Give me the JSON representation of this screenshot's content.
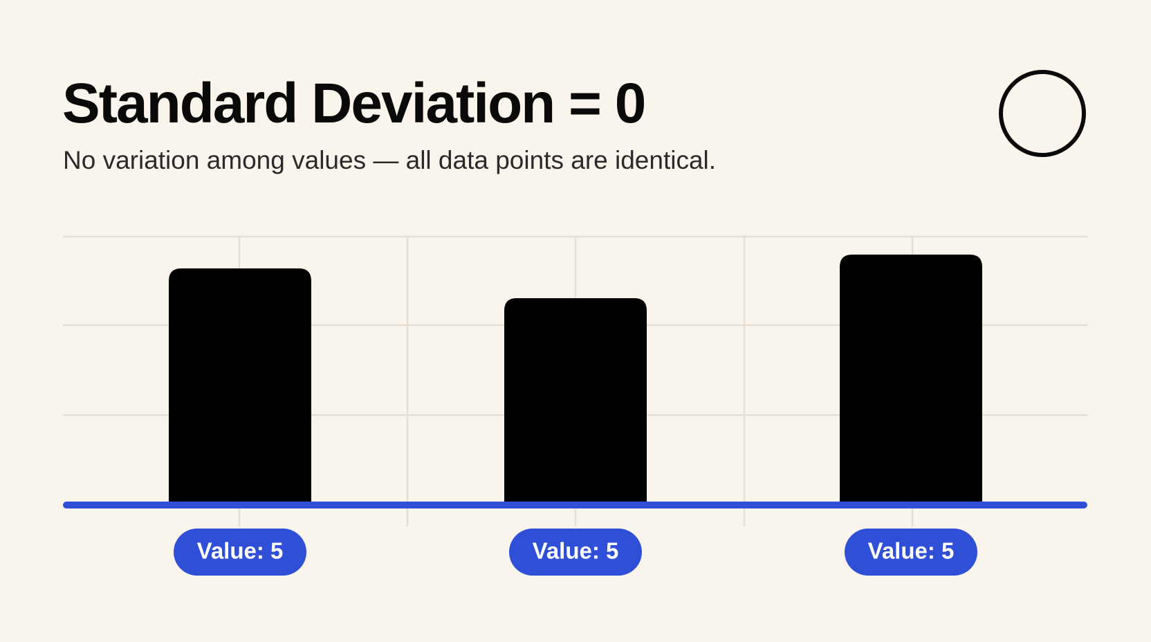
{
  "header": {
    "title": "Standard Deviation = 0",
    "subtitle": "No variation among values — all data points are identical."
  },
  "labels": [
    "Value: 5",
    "Value: 5",
    "Value: 5"
  ]
}
